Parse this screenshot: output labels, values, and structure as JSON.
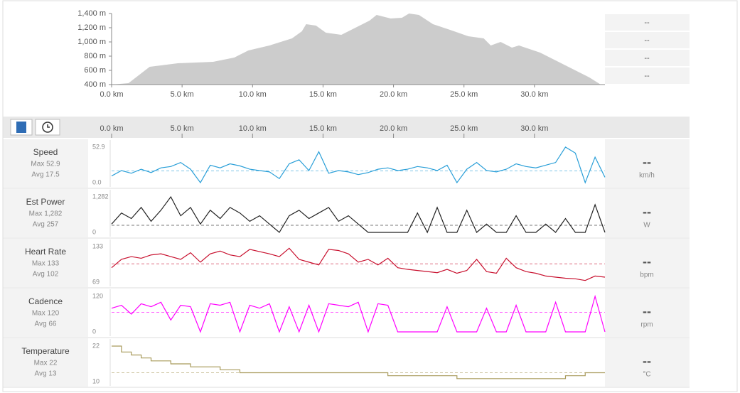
{
  "elevation": {
    "type": "area",
    "color": "#cccccc",
    "xlim": [
      0,
      35
    ],
    "ylim": [
      400,
      1400
    ],
    "yticks": [
      {
        "value": 400,
        "label": "400 m"
      },
      {
        "value": 600,
        "label": "600 m"
      },
      {
        "value": 800,
        "label": "800 m"
      },
      {
        "value": 1000,
        "label": "1,000 m"
      },
      {
        "value": 1200,
        "label": "1,200 m"
      },
      {
        "value": 1400,
        "label": "1,400 m"
      }
    ],
    "xticks": [
      {
        "value": 0,
        "label": "0.0 km"
      },
      {
        "value": 5,
        "label": "5.0 km"
      },
      {
        "value": 10,
        "label": "10.0 km"
      },
      {
        "value": 15,
        "label": "15.0 km"
      },
      {
        "value": 20,
        "label": "20.0 km"
      },
      {
        "value": 25,
        "label": "25.0 km"
      },
      {
        "value": 30,
        "label": "30.0 km"
      }
    ],
    "x": [
      0,
      1.2,
      2.7,
      4.7,
      7.2,
      8.7,
      9.7,
      11.2,
      12.8,
      13.5,
      13.8,
      14.5,
      15.2,
      16.3,
      17.3,
      18.3,
      18.8,
      19.8,
      20.6,
      21.1,
      21.8,
      22.8,
      24.3,
      25.3,
      26.4,
      26.9,
      27.6,
      28.4,
      28.9,
      30.4,
      31.4,
      32.4,
      33.9,
      34.7
    ],
    "values": [
      400,
      420,
      650,
      700,
      720,
      780,
      880,
      950,
      1050,
      1150,
      1250,
      1230,
      1130,
      1100,
      1200,
      1300,
      1380,
      1330,
      1340,
      1400,
      1380,
      1250,
      1150,
      1080,
      1050,
      950,
      1000,
      920,
      950,
      850,
      750,
      650,
      500,
      400
    ],
    "side": [
      "--",
      "--",
      "--",
      "--"
    ]
  },
  "panels": {
    "xlim": [
      0,
      35
    ],
    "x": [
      0,
      0.7,
      1.4,
      2.1,
      2.8,
      3.5,
      4.2,
      4.9,
      5.6,
      6.3,
      7,
      7.7,
      8.4,
      9.1,
      9.8,
      10.5,
      11.2,
      11.9,
      12.6,
      13.3,
      14,
      14.7,
      15.4,
      16.1,
      16.8,
      17.5,
      18.2,
      18.9,
      19.6,
      20.3,
      21,
      21.7,
      22.4,
      23.1,
      23.8,
      24.5,
      25.2,
      25.9,
      26.6,
      27.3,
      28,
      28.7,
      29.4,
      30.1,
      30.8,
      31.5,
      32.2,
      32.9,
      33.6,
      34.3,
      35
    ],
    "items": [
      {
        "type": "line",
        "name": "Speed",
        "max": 52.9,
        "max_label": "Max 52.9",
        "avg": 17.5,
        "avg_label": "Avg 17.5",
        "current": "--",
        "unit": "km/h",
        "color": "#2a9fd8",
        "ylim": [
          0,
          52.9
        ],
        "yticks": [
          {
            "value": 0,
            "label": "0.0"
          },
          52.9
        ],
        "values": [
          10,
          18,
          14,
          20,
          15,
          22,
          24,
          30,
          20,
          0,
          26,
          22,
          28,
          25,
          20,
          18,
          16,
          6,
          28,
          34,
          18,
          46,
          14,
          18,
          16,
          12,
          15,
          20,
          22,
          18,
          20,
          24,
          22,
          18,
          26,
          0,
          20,
          30,
          18,
          16,
          20,
          28,
          24,
          22,
          26,
          30,
          52.9,
          44,
          0,
          38,
          8
        ]
      },
      {
        "type": "line",
        "name": "Est Power",
        "max": 1282,
        "max_label": "Max 1,282",
        "avg": 257,
        "avg_label": "Avg 257",
        "current": "--",
        "unit": "W",
        "color": "#222222",
        "ylim": [
          0,
          1282
        ],
        "yticks": [
          0,
          {
            "value": 1282,
            "label": "1,282"
          }
        ],
        "values": [
          300,
          700,
          500,
          900,
          400,
          800,
          1282,
          600,
          900,
          300,
          800,
          500,
          900,
          700,
          400,
          600,
          300,
          0,
          600,
          800,
          500,
          700,
          900,
          400,
          600,
          300,
          0,
          0,
          0,
          0,
          0,
          700,
          0,
          900,
          0,
          0,
          800,
          0,
          300,
          0,
          0,
          600,
          0,
          0,
          300,
          0,
          500,
          0,
          0,
          1000,
          0
        ]
      },
      {
        "type": "line",
        "name": "Heart Rate",
        "max": 133,
        "max_label": "Max 133",
        "avg": 102,
        "avg_label": "Avg 102",
        "current": "--",
        "unit": "bpm",
        "color": "#c8102e",
        "ylim": [
          69,
          133
        ],
        "yticks": [
          69,
          133
        ],
        "values": [
          95,
          110,
          115,
          112,
          118,
          120,
          115,
          110,
          122,
          105,
          120,
          125,
          118,
          115,
          128,
          124,
          120,
          115,
          130,
          110,
          105,
          100,
          128,
          126,
          120,
          105,
          110,
          100,
          112,
          95,
          92,
          90,
          88,
          86,
          92,
          85,
          90,
          110,
          88,
          85,
          112,
          95,
          88,
          85,
          80,
          78,
          76,
          75,
          72,
          80,
          78
        ]
      },
      {
        "type": "line",
        "name": "Cadence",
        "max": 120,
        "max_label": "Max 120",
        "avg": 66,
        "avg_label": "Avg 66",
        "current": "--",
        "unit": "rpm",
        "color": "#ff00ff",
        "ylim": [
          0,
          120
        ],
        "yticks": [
          0,
          120
        ],
        "values": [
          80,
          90,
          60,
          95,
          85,
          100,
          40,
          90,
          85,
          0,
          95,
          90,
          100,
          0,
          90,
          80,
          95,
          0,
          85,
          0,
          90,
          0,
          95,
          90,
          85,
          100,
          0,
          95,
          90,
          0,
          0,
          0,
          0,
          0,
          85,
          0,
          0,
          0,
          80,
          0,
          0,
          90,
          0,
          0,
          0,
          100,
          0,
          0,
          0,
          120,
          0
        ]
      },
      {
        "type": "step",
        "name": "Temperature",
        "max": 22,
        "max_label": "Max 22",
        "avg": 13,
        "avg_label": "Avg 13",
        "current": "--",
        "unit": "°C",
        "color": "#a89a5a",
        "ylim": [
          10,
          22
        ],
        "yticks": [
          10,
          22
        ],
        "values": [
          22,
          20,
          19,
          18,
          17,
          17,
          16,
          16,
          15,
          15,
          15,
          14,
          14,
          13,
          13,
          13,
          13,
          13,
          13,
          13,
          13,
          13,
          13,
          13,
          13,
          13,
          13,
          13,
          12,
          12,
          12,
          12,
          12,
          12,
          12,
          11,
          11,
          11,
          11,
          11,
          11,
          11,
          11,
          11,
          11,
          11,
          12,
          12,
          13,
          13,
          13
        ]
      }
    ]
  }
}
